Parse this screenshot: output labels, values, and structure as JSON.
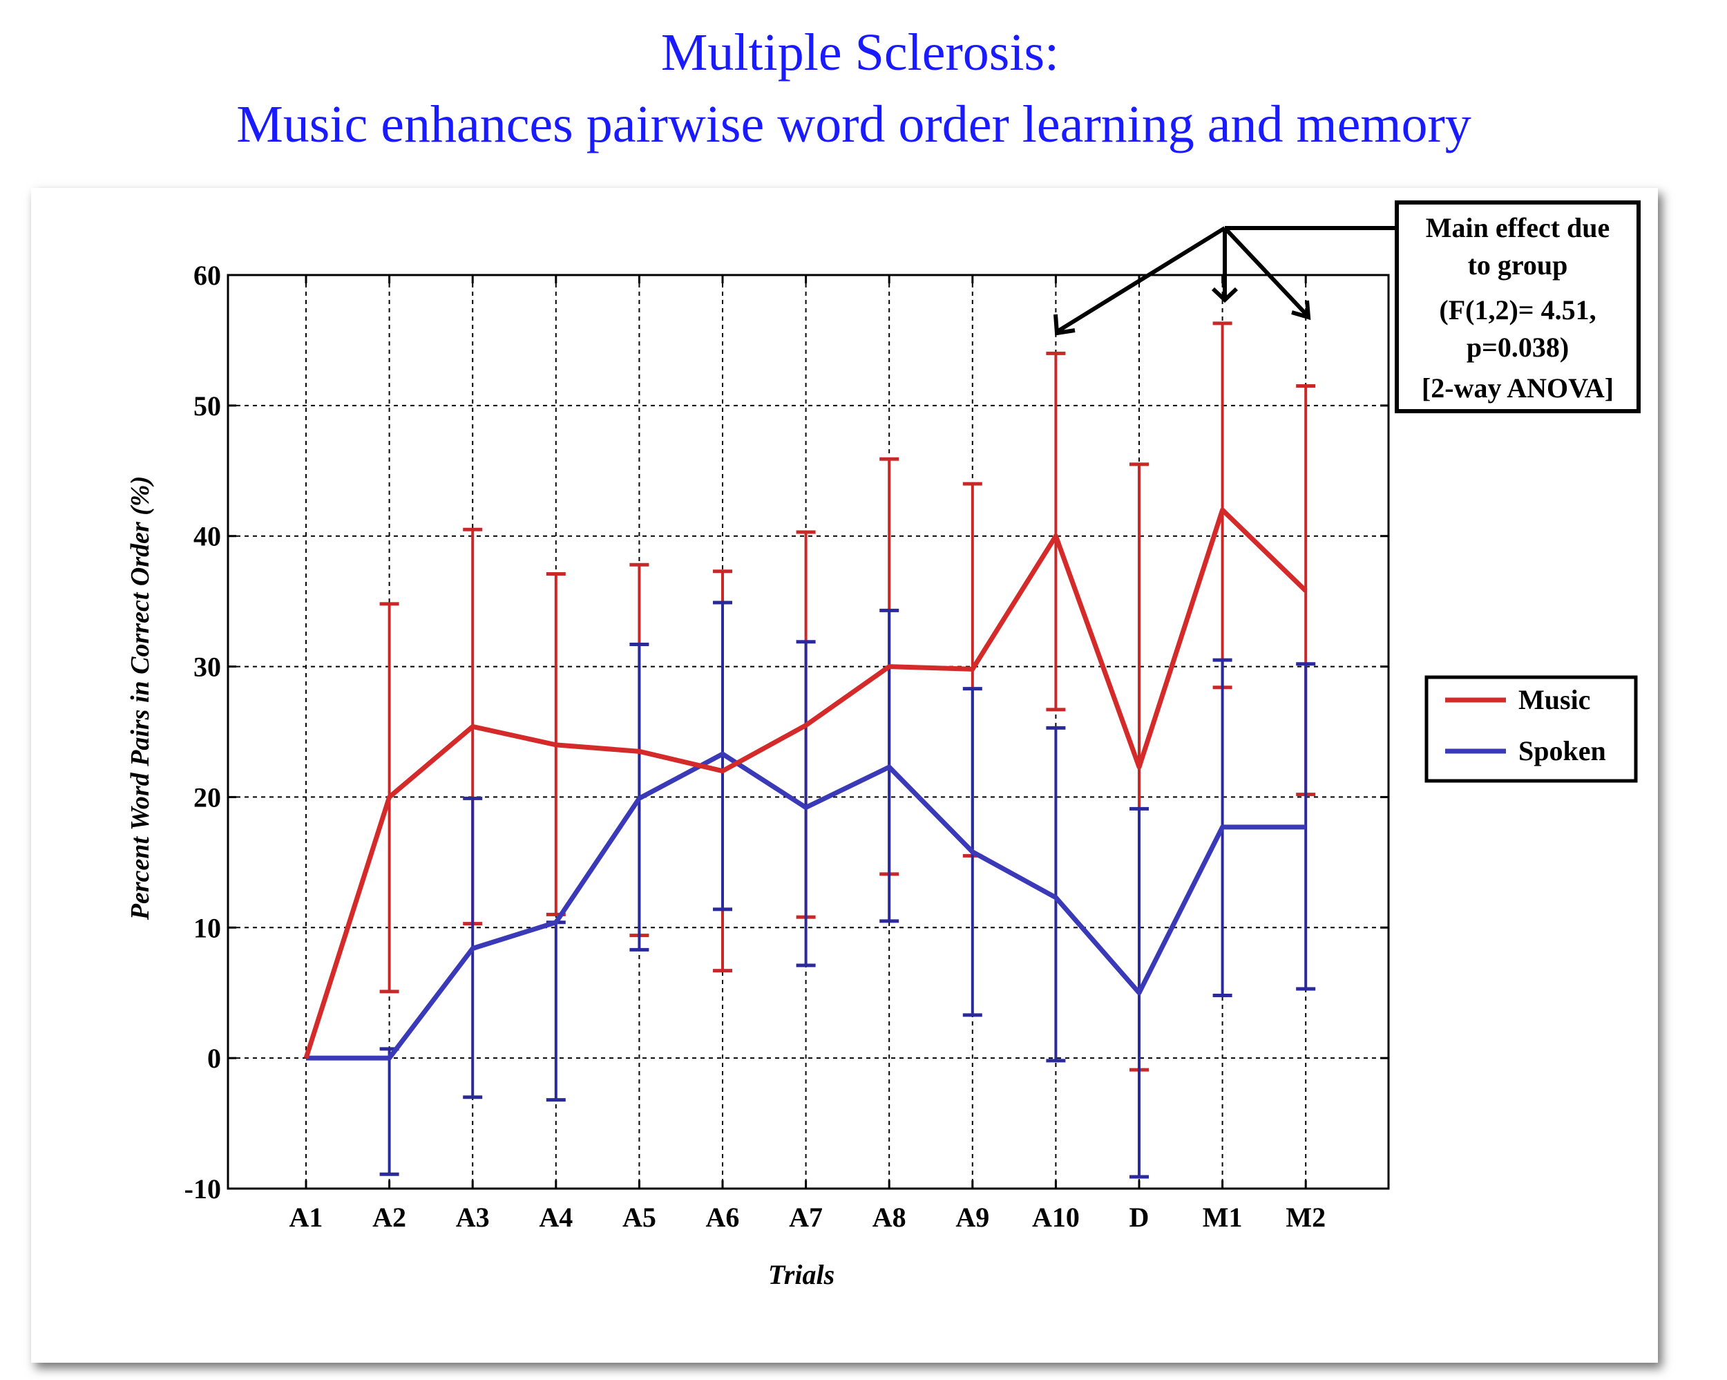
{
  "page": {
    "title_line1": "Multiple Sclerosis:",
    "title_line2": "Music enhances pairwise word order learning and memory"
  },
  "annotation": {
    "lines": [
      "Main effect due",
      "to group",
      "(F(1,2)= 4.51,",
      "p=0.038)",
      "[2-way ANOVA]"
    ],
    "arrow_targets": [
      "A10",
      "M1",
      "M2"
    ]
  },
  "legend": {
    "items": [
      {
        "label": "Music",
        "color": "#d42a2a"
      },
      {
        "label": "Spoken",
        "color": "#3a3ab8"
      }
    ]
  },
  "chart_data": {
    "type": "line",
    "title": "Multiple Sclerosis: Music enhances pairwise word order learning and memory",
    "xlabel": "Trials",
    "ylabel": "Percent Word Pairs in Correct Order (%)",
    "ylim": [
      -10,
      60
    ],
    "yticks": [
      -10,
      0,
      10,
      20,
      30,
      40,
      50,
      60
    ],
    "grid": true,
    "legend_position": "right",
    "categories": [
      "A1",
      "A2",
      "A3",
      "A4",
      "A5",
      "A6",
      "A7",
      "A8",
      "A9",
      "A10",
      "D",
      "M1",
      "M2"
    ],
    "series": [
      {
        "name": "Music",
        "color": "#d42a2a",
        "values": [
          0,
          20,
          25.4,
          24,
          23.5,
          22,
          25.5,
          30,
          29.8,
          40,
          22.3,
          42,
          35.8
        ],
        "error_upper": [
          0,
          34.8,
          40.5,
          37.1,
          37.8,
          37.3,
          40.3,
          45.9,
          44,
          54,
          45.5,
          56.3,
          51.5
        ],
        "error_lower": [
          0,
          5.1,
          10.3,
          11,
          9.4,
          6.7,
          10.8,
          14.1,
          15.5,
          26.7,
          -0.9,
          28.4,
          20.2
        ]
      },
      {
        "name": "Spoken",
        "color": "#3a3ab8",
        "values": [
          0,
          0,
          8.4,
          10.4,
          19.9,
          23.3,
          19.2,
          22.3,
          15.8,
          12.3,
          5,
          17.7,
          17.7
        ],
        "error_upper": [
          0,
          0.7,
          19.9,
          10.4,
          31.7,
          34.9,
          31.9,
          34.3,
          28.3,
          25.3,
          19.1,
          30.5,
          30.2
        ],
        "error_lower": [
          0,
          -8.9,
          -3.0,
          -3.2,
          8.3,
          11.4,
          7.1,
          10.5,
          3.3,
          -0.2,
          -9.1,
          4.8,
          5.3
        ]
      }
    ],
    "annotations": [
      "Main effect due to group (F(1,2)= 4.51, p=0.038) [2-way ANOVA]"
    ]
  }
}
